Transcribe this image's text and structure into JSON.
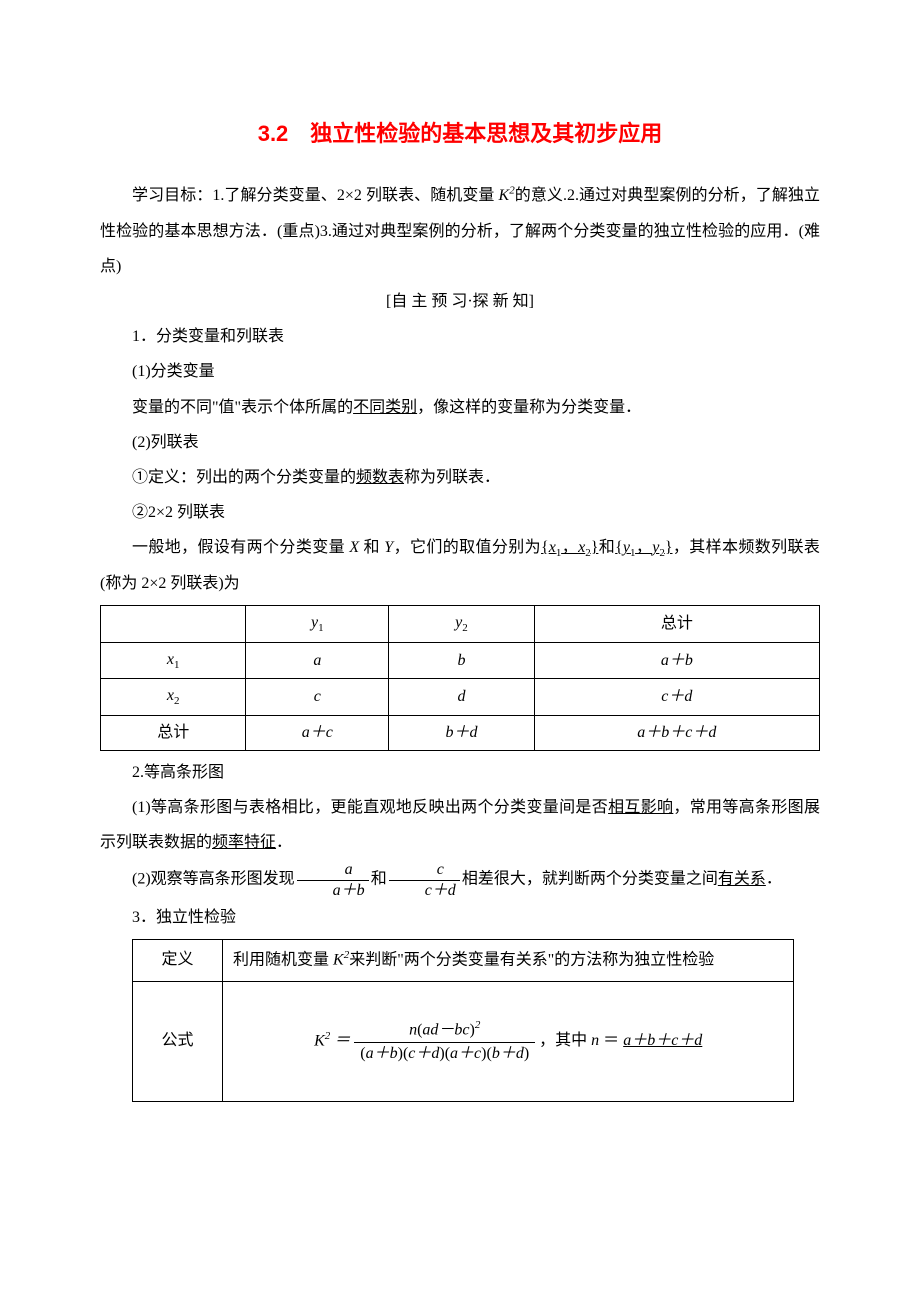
{
  "title": "3.2　独立性检验的基本思想及其初步应用",
  "intro": {
    "p1_pre": "学习目标：1.了解分类变量、2×2 列联表、随机变量 ",
    "p1_k2": "K",
    "p1_mid": "的意义.2.通过对典型案例的分析，了解独立性检验的基本思想方法．(重点)3.通过对典型案例的分析，了解两个分类变量的独立性检验的应用．(难点)"
  },
  "preview_header": "[自 主 预 习·探 新 知]",
  "s1": {
    "h": "1．分类变量和列联表",
    "p1": "(1)分类变量",
    "p2_pre": "变量的不同\"值\"表示个体所属的",
    "p2_u": "不同类别",
    "p2_post": "，像这样的变量称为分类变量．",
    "p3": "(2)列联表",
    "p4_pre": "①定义：列出的两个分类变量的",
    "p4_u": "频数表",
    "p4_post": "称为列联表．",
    "p5": "②2×2 列联表",
    "p6_pre": "一般地，假设有两个分类变量 ",
    "p6_x": "X",
    "p6_and": " 和 ",
    "p6_y": "Y",
    "p6_mid": "，它们的取值分别为",
    "p6_u1_open": "{",
    "p6_u1_x1": "x",
    "p6_u1_comma": "，",
    "p6_u1_x2": "x",
    "p6_u1_close": "}",
    "p6_and2": "和",
    "p6_u2_open": "{",
    "p6_u2_y1": "y",
    "p6_u2_comma": "，",
    "p6_u2_y2": "y",
    "p6_u2_close": "}",
    "p6_post": "，其样本频数列联表(称为 2×2 列联表)为"
  },
  "table1": {
    "headers": [
      "",
      "y₁",
      "y₂",
      "总计"
    ],
    "r1": [
      "x₁",
      "a",
      "b",
      "a＋b"
    ],
    "r2": [
      "x₂",
      "c",
      "d",
      "c＋d"
    ],
    "r3": [
      "总计",
      "a＋c",
      "b＋d",
      "a＋b＋c＋d"
    ]
  },
  "s2": {
    "h": "2.等高条形图",
    "p1_pre": "(1)等高条形图与表格相比，更能直观地反映出两个分类变量间是否",
    "p1_u": "相互影响",
    "p1_mid": "，常用等高条形图展示列联表数据的",
    "p1_u2": "频率特征",
    "p1_post": "．",
    "p2_pre": "(2)观察等高条形图发现",
    "frac1_num": "a",
    "frac1_den": "a＋b",
    "p2_and": "和",
    "frac2_num": "c",
    "frac2_den": "c＋d",
    "p2_mid": "相差很大，就判断两个分类变量之间",
    "p2_u": "有关系",
    "p2_post": "．"
  },
  "s3": {
    "h": "3．独立性检验",
    "row1_label": "定义",
    "row1_pre": "利用随机变量 ",
    "row1_k": "K",
    "row1_post": "来判断\"两个分类变量有关系\"的方法称为独立性检验",
    "row2_label": "公式",
    "formula": {
      "lhs": "K",
      "eq": "＝",
      "num_pre": "n",
      "num_paren_l": "(",
      "num_ad": "ad",
      "num_minus": "－",
      "num_bc": "bc",
      "num_paren_r": ")",
      "num_sq": "2",
      "den_1l": "(",
      "den_1": "a＋b",
      "den_1r": ")",
      "den_2l": "(",
      "den_2": "c＋d",
      "den_2r": ")",
      "den_3l": "(",
      "den_3": "a＋c",
      "den_3r": ")",
      "den_4l": "(",
      "den_4": "b＋d",
      "den_4r": ")",
      "where_pre": "，其中 ",
      "where_n": "n",
      "where_eq": "＝",
      "where_u": "a＋b＋c＋d"
    }
  },
  "colors": {
    "title": "#ff0000",
    "text": "#000000",
    "background": "#ffffff"
  }
}
